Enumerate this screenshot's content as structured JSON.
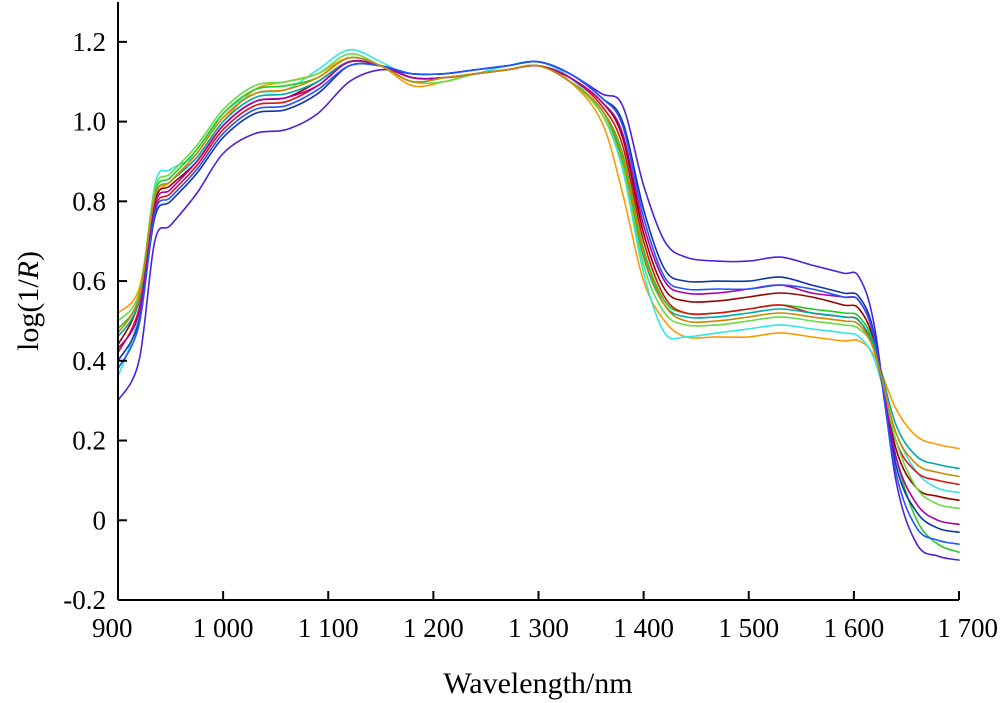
{
  "chart_data": {
    "type": "line",
    "title": "",
    "xlabel": "Wavelength/nm",
    "ylabel_prefix": "log(1/",
    "ylabel_italic": "R",
    "ylabel_suffix": ")",
    "xlim": [
      900,
      1700
    ],
    "ylim": [
      -0.2,
      1.3
    ],
    "xticks": [
      900,
      1000,
      1100,
      1200,
      1300,
      1400,
      1500,
      1600,
      1700
    ],
    "xtick_labels": [
      "900",
      "1 000",
      "1 100",
      "1 200",
      "1 300",
      "1 400",
      "1 500",
      "1 600",
      "1 700"
    ],
    "yticks": [
      -0.2,
      0,
      0.2,
      0.4,
      0.6,
      0.8,
      1.0,
      1.2
    ],
    "ytick_labels": [
      "-0.2",
      "0",
      "0.2",
      "0.4",
      "0.6",
      "0.8",
      "1.0",
      "1.2"
    ],
    "grid": false,
    "legend": "none",
    "x": [
      900,
      920,
      935,
      950,
      975,
      1000,
      1030,
      1060,
      1090,
      1120,
      1150,
      1180,
      1210,
      1240,
      1270,
      1300,
      1330,
      1360,
      1380,
      1400,
      1420,
      1440,
      1470,
      1500,
      1530,
      1560,
      1590,
      1605,
      1620,
      1640,
      1660,
      1680,
      1700
    ],
    "series": [
      {
        "color": "#ff9900",
        "values": [
          0.52,
          0.58,
          0.8,
          0.85,
          0.91,
          1.0,
          1.08,
          1.1,
          1.12,
          1.16,
          1.14,
          1.09,
          1.1,
          1.12,
          1.13,
          1.14,
          1.1,
          1.0,
          0.82,
          0.6,
          0.5,
          0.46,
          0.46,
          0.46,
          0.47,
          0.46,
          0.45,
          0.45,
          0.41,
          0.28,
          0.21,
          0.19,
          0.18
        ]
      },
      {
        "color": "#33e6e6",
        "values": [
          0.36,
          0.52,
          0.84,
          0.88,
          0.92,
          1.02,
          1.07,
          1.08,
          1.13,
          1.18,
          1.15,
          1.11,
          1.11,
          1.12,
          1.14,
          1.15,
          1.11,
          1.02,
          0.88,
          0.62,
          0.47,
          0.46,
          0.47,
          0.48,
          0.49,
          0.48,
          0.47,
          0.46,
          0.4,
          0.22,
          0.12,
          0.08,
          0.07
        ]
      },
      {
        "color": "#5020d8",
        "values": [
          0.3,
          0.4,
          0.7,
          0.74,
          0.82,
          0.92,
          0.97,
          0.98,
          1.02,
          1.1,
          1.13,
          1.12,
          1.12,
          1.13,
          1.14,
          1.15,
          1.12,
          1.07,
          1.04,
          0.84,
          0.7,
          0.66,
          0.65,
          0.65,
          0.66,
          0.64,
          0.62,
          0.61,
          0.48,
          0.1,
          -0.06,
          -0.09,
          -0.1
        ]
      },
      {
        "color": "#990000",
        "values": [
          0.44,
          0.55,
          0.8,
          0.84,
          0.9,
          0.99,
          1.05,
          1.06,
          1.1,
          1.15,
          1.14,
          1.11,
          1.11,
          1.12,
          1.13,
          1.14,
          1.11,
          1.05,
          0.96,
          0.72,
          0.58,
          0.55,
          0.55,
          0.56,
          0.57,
          0.56,
          0.54,
          0.53,
          0.44,
          0.18,
          0.08,
          0.06,
          0.05
        ]
      },
      {
        "color": "#22cc22",
        "values": [
          0.48,
          0.56,
          0.82,
          0.86,
          0.93,
          1.02,
          1.08,
          1.09,
          1.11,
          1.16,
          1.14,
          1.1,
          1.11,
          1.12,
          1.13,
          1.14,
          1.1,
          1.03,
          0.92,
          0.68,
          0.55,
          0.52,
          0.52,
          0.53,
          0.54,
          0.53,
          0.52,
          0.51,
          0.43,
          0.16,
          0.0,
          -0.06,
          -0.08
        ]
      },
      {
        "color": "#1133aa",
        "values": [
          0.4,
          0.5,
          0.76,
          0.8,
          0.87,
          0.96,
          1.02,
          1.03,
          1.07,
          1.14,
          1.14,
          1.12,
          1.12,
          1.13,
          1.14,
          1.15,
          1.12,
          1.06,
          1.0,
          0.78,
          0.63,
          0.6,
          0.6,
          0.6,
          0.61,
          0.59,
          0.57,
          0.56,
          0.46,
          0.14,
          0.02,
          -0.02,
          -0.03
        ]
      },
      {
        "color": "#dd1111",
        "values": [
          0.42,
          0.53,
          0.78,
          0.82,
          0.89,
          0.98,
          1.04,
          1.05,
          1.09,
          1.15,
          1.14,
          1.11,
          1.11,
          1.12,
          1.13,
          1.14,
          1.11,
          1.04,
          0.94,
          0.7,
          0.56,
          0.52,
          0.52,
          0.53,
          0.54,
          0.52,
          0.51,
          0.5,
          0.42,
          0.2,
          0.12,
          0.1,
          0.09
        ]
      },
      {
        "color": "#00aaaa",
        "values": [
          0.46,
          0.55,
          0.81,
          0.85,
          0.91,
          1.0,
          1.06,
          1.07,
          1.1,
          1.15,
          1.14,
          1.1,
          1.11,
          1.12,
          1.13,
          1.14,
          1.1,
          1.03,
          0.9,
          0.66,
          0.54,
          0.51,
          0.51,
          0.52,
          0.53,
          0.52,
          0.51,
          0.5,
          0.43,
          0.24,
          0.16,
          0.14,
          0.13
        ]
      },
      {
        "color": "#66dd44",
        "values": [
          0.5,
          0.57,
          0.83,
          0.87,
          0.94,
          1.03,
          1.09,
          1.1,
          1.12,
          1.17,
          1.14,
          1.1,
          1.1,
          1.12,
          1.13,
          1.14,
          1.1,
          1.02,
          0.89,
          0.64,
          0.52,
          0.49,
          0.49,
          0.5,
          0.51,
          0.5,
          0.49,
          0.48,
          0.42,
          0.2,
          0.08,
          0.04,
          0.03
        ]
      },
      {
        "color": "#aa00aa",
        "values": [
          0.43,
          0.52,
          0.79,
          0.83,
          0.9,
          0.99,
          1.05,
          1.06,
          1.09,
          1.15,
          1.14,
          1.11,
          1.11,
          1.12,
          1.13,
          1.14,
          1.11,
          1.05,
          0.97,
          0.74,
          0.6,
          0.57,
          0.57,
          0.58,
          0.59,
          0.57,
          0.56,
          0.55,
          0.45,
          0.16,
          0.04,
          0.0,
          -0.01
        ]
      },
      {
        "color": "#2255ff",
        "values": [
          0.38,
          0.49,
          0.77,
          0.81,
          0.88,
          0.97,
          1.03,
          1.04,
          1.08,
          1.14,
          1.14,
          1.12,
          1.12,
          1.13,
          1.14,
          1.15,
          1.12,
          1.06,
          0.99,
          0.76,
          0.61,
          0.58,
          0.58,
          0.58,
          0.59,
          0.58,
          0.56,
          0.55,
          0.45,
          0.12,
          -0.02,
          -0.05,
          -0.06
        ]
      },
      {
        "color": "#cc8800",
        "values": [
          0.47,
          0.56,
          0.81,
          0.85,
          0.92,
          1.01,
          1.07,
          1.08,
          1.11,
          1.16,
          1.14,
          1.1,
          1.11,
          1.12,
          1.13,
          1.14,
          1.1,
          1.03,
          0.91,
          0.67,
          0.54,
          0.5,
          0.5,
          0.51,
          0.52,
          0.51,
          0.5,
          0.49,
          0.42,
          0.22,
          0.14,
          0.12,
          0.11
        ]
      }
    ]
  }
}
